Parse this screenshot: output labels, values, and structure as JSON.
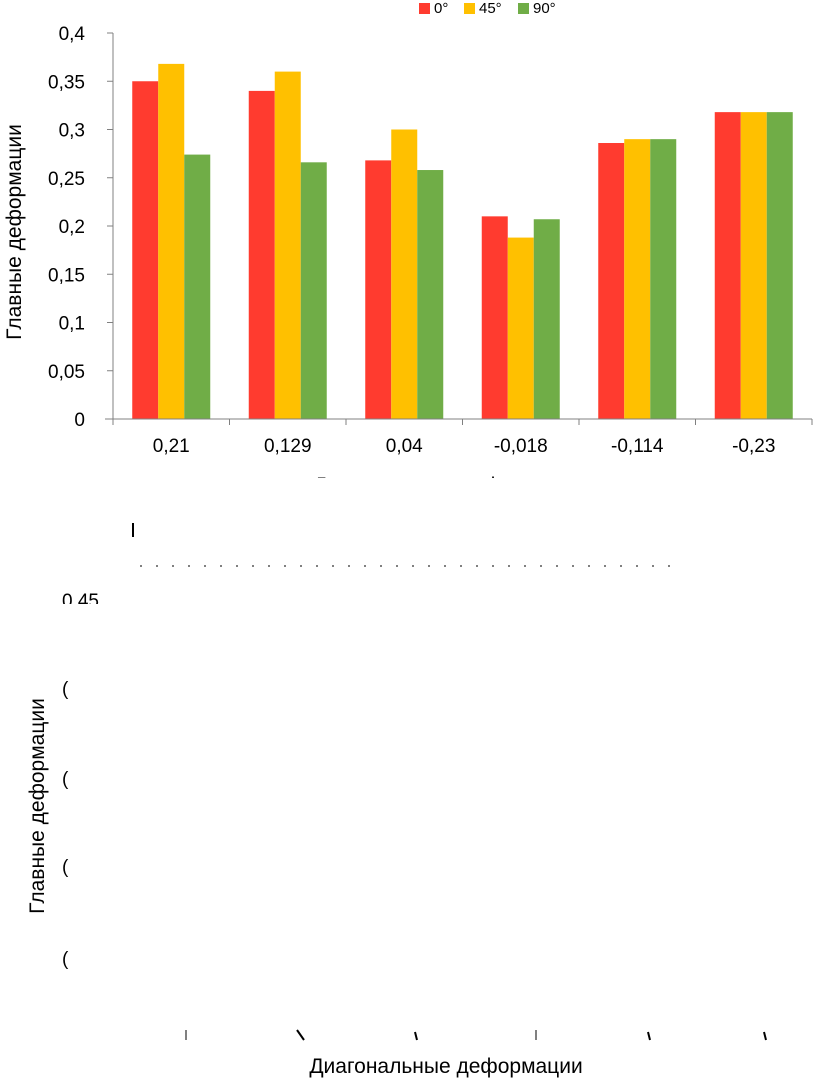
{
  "chart_data": [
    {
      "type": "bar",
      "title": "",
      "xlabel": "Диагональные деформации",
      "ylabel": "Главные деформации",
      "categories": [
        "0,21",
        "0,129",
        "0,04",
        "-0,018",
        "-0,114",
        "-0,23"
      ],
      "series": [
        {
          "name": "0°",
          "color": "#ff3b2f",
          "values": [
            0.35,
            0.34,
            0.268,
            0.21,
            0.286,
            0.318
          ]
        },
        {
          "name": "45°",
          "color": "#ffc000",
          "values": [
            0.368,
            0.36,
            0.3,
            0.188,
            0.29,
            0.318
          ]
        },
        {
          "name": "90°",
          "color": "#70ad47",
          "values": [
            0.274,
            0.266,
            0.258,
            0.207,
            0.29,
            0.318
          ]
        }
      ],
      "ylim": [
        0,
        0.4
      ],
      "yticks": [
        "0",
        "0,05",
        "0,1",
        "0,15",
        "0,2",
        "0,25",
        "0,3",
        "0,35",
        "0,4"
      ],
      "legend": "top-right",
      "grid": false
    },
    {
      "type": "bar",
      "title": "",
      "xlabel": "Диагональные деформации",
      "ylabel": "Главные деформации",
      "categories": [],
      "series": [],
      "ylim": [
        0,
        0.45
      ],
      "yticks": [
        "0,45"
      ],
      "grid": false
    }
  ],
  "colors": {
    "axis": "#808080"
  }
}
